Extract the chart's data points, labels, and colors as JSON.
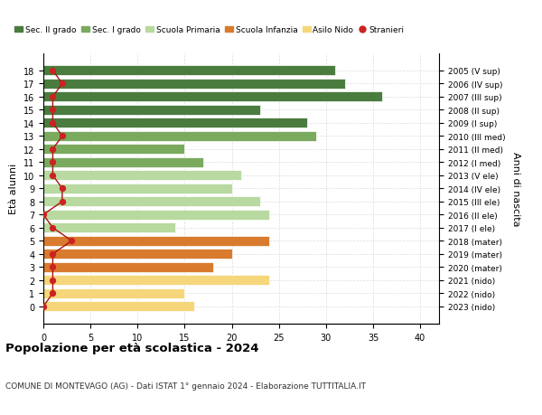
{
  "ages": [
    18,
    17,
    16,
    15,
    14,
    13,
    12,
    11,
    10,
    9,
    8,
    7,
    6,
    5,
    4,
    3,
    2,
    1,
    0
  ],
  "values": [
    31,
    32,
    36,
    23,
    28,
    29,
    15,
    17,
    21,
    20,
    23,
    24,
    14,
    24,
    20,
    18,
    24,
    15,
    16
  ],
  "stranieri": [
    1,
    2,
    1,
    1,
    1,
    2,
    1,
    1,
    1,
    2,
    2,
    0,
    1,
    3,
    1,
    1,
    1,
    1,
    0
  ],
  "right_labels": [
    "2005 (V sup)",
    "2006 (IV sup)",
    "2007 (III sup)",
    "2008 (II sup)",
    "2009 (I sup)",
    "2010 (III med)",
    "2011 (II med)",
    "2012 (I med)",
    "2013 (V ele)",
    "2014 (IV ele)",
    "2015 (III ele)",
    "2016 (II ele)",
    "2017 (I ele)",
    "2018 (mater)",
    "2019 (mater)",
    "2020 (mater)",
    "2021 (nido)",
    "2022 (nido)",
    "2023 (nido)"
  ],
  "bar_colors": [
    "#4a7c3f",
    "#4a7c3f",
    "#4a7c3f",
    "#4a7c3f",
    "#4a7c3f",
    "#7aaa5e",
    "#7aaa5e",
    "#7aaa5e",
    "#b8d9a0",
    "#b8d9a0",
    "#b8d9a0",
    "#b8d9a0",
    "#b8d9a0",
    "#d97b2e",
    "#d97b2e",
    "#d97b2e",
    "#f5d67a",
    "#f5d67a",
    "#f5d67a"
  ],
  "legend_items": [
    {
      "label": "Sec. II grado",
      "color": "#4a7c3f"
    },
    {
      "label": "Sec. I grado",
      "color": "#7aaa5e"
    },
    {
      "label": "Scuola Primaria",
      "color": "#b8d9a0"
    },
    {
      "label": "Scuola Infanzia",
      "color": "#d97b2e"
    },
    {
      "label": "Asilo Nido",
      "color": "#f5d67a"
    },
    {
      "label": "Stranieri",
      "color": "#cc2222"
    }
  ],
  "stranieri_color": "#cc2222",
  "line_color": "#aa1111",
  "ylabel": "Età alunni",
  "ylabel_right": "Anni di nascita",
  "title": "Popolazione per età scolastica - 2024",
  "subtitle": "COMUNE DI MONTEVAGO (AG) - Dati ISTAT 1° gennaio 2024 - Elaborazione TUTTITALIA.IT",
  "xlim": [
    0,
    42
  ],
  "xticks": [
    0,
    5,
    10,
    15,
    20,
    25,
    30,
    35,
    40
  ],
  "bar_height": 0.75,
  "grid_color": "#dddddd"
}
